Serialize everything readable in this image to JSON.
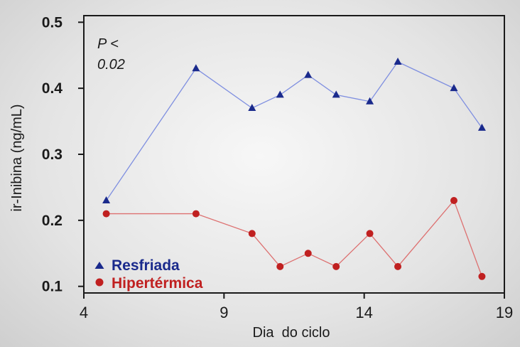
{
  "chart_data": {
    "type": "line",
    "xlabel": "Dia  do ciclo",
    "ylabel": "ir-Inibina (ng/mL)",
    "annotation": [
      "P <",
      "0.02"
    ],
    "xlim": [
      4,
      19
    ],
    "ylim": [
      0.09,
      0.51
    ],
    "xticks": [
      4,
      9,
      14,
      19
    ],
    "yticks": [
      {
        "value": 0.1,
        "label": "0.1"
      },
      {
        "value": 0.2,
        "label": "0.2"
      },
      {
        "value": 0.3,
        "label": "0.3"
      },
      {
        "value": 0.4,
        "label": "0.4"
      },
      {
        "value": 0.5,
        "label": "0.5"
      }
    ],
    "grid": false,
    "legend": "bottom-left",
    "series": [
      {
        "name": "Resfriada",
        "color": "#1a2a8c",
        "line_color": "#7f8fe0",
        "marker": "triangle",
        "x": [
          4.8,
          8.0,
          10.0,
          11.0,
          12.0,
          13.0,
          14.2,
          15.2,
          17.2,
          18.2
        ],
        "y": [
          0.23,
          0.43,
          0.37,
          0.39,
          0.42,
          0.39,
          0.38,
          0.44,
          0.4,
          0.34
        ]
      },
      {
        "name": "Hipertérmica",
        "color": "#c02020",
        "line_color": "#dd7070",
        "marker": "circle",
        "x": [
          4.8,
          8.0,
          10.0,
          11.0,
          12.0,
          13.0,
          14.2,
          15.2,
          17.2,
          18.2
        ],
        "y": [
          0.21,
          0.21,
          0.18,
          0.13,
          0.15,
          0.13,
          0.18,
          0.13,
          0.23,
          0.115
        ]
      }
    ]
  }
}
